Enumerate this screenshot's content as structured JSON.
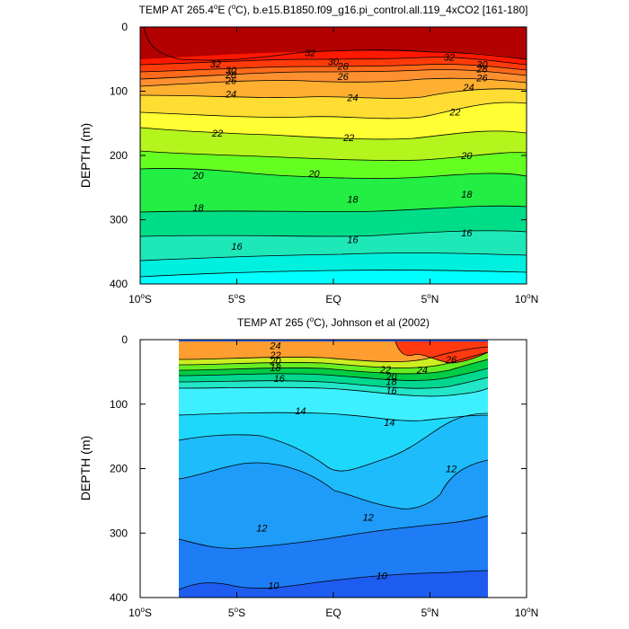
{
  "chart_data": [
    {
      "type": "contour",
      "title_main": "TEMP AT 265.4",
      "title_sup": "o",
      "title_units_open": "E (",
      "title_units_sup": "o",
      "title_rest": "C), b.e15.B1850.f09_g16.pi_control.all.119_4xCO2 [161-180]",
      "ylabel": "DEPTH (m)",
      "ylim": [
        0,
        400
      ],
      "xlim": [
        -10,
        10
      ],
      "y_ticks": [
        "0",
        "100",
        "200",
        "300",
        "400"
      ],
      "y_tick_values": [
        0,
        100,
        200,
        300,
        400
      ],
      "x_ticks": [
        {
          "value": -10,
          "num": "10",
          "sup": "o",
          "suffix": "S"
        },
        {
          "value": -5,
          "num": "5",
          "sup": "o",
          "suffix": "S"
        },
        {
          "value": 0,
          "num": "EQ",
          "sup": "",
          "suffix": ""
        },
        {
          "value": 5,
          "num": "5",
          "sup": "o",
          "suffix": "N"
        },
        {
          "value": 10,
          "num": "10",
          "sup": "o",
          "suffix": "N"
        }
      ],
      "data_x_range": [
        -10,
        10
      ],
      "contour_labels": [
        {
          "text": "32",
          "x": -6.1,
          "y": 57
        },
        {
          "text": "30",
          "x": -5.3,
          "y": 67
        },
        {
          "text": "28",
          "x": -5.3,
          "y": 74
        },
        {
          "text": "26",
          "x": -5.3,
          "y": 83
        },
        {
          "text": "24",
          "x": -5.3,
          "y": 104
        },
        {
          "text": "22",
          "x": -6.0,
          "y": 165
        },
        {
          "text": "20",
          "x": -7.0,
          "y": 231
        },
        {
          "text": "18",
          "x": -7.0,
          "y": 281
        },
        {
          "text": "16",
          "x": -5.0,
          "y": 341
        },
        {
          "text": "32",
          "x": -1.2,
          "y": 40
        },
        {
          "text": "30",
          "x": 0.0,
          "y": 54
        },
        {
          "text": "28",
          "x": 0.5,
          "y": 61
        },
        {
          "text": "26",
          "x": 0.5,
          "y": 77
        },
        {
          "text": "24",
          "x": 1.0,
          "y": 110
        },
        {
          "text": "22",
          "x": 0.8,
          "y": 172
        },
        {
          "text": "20",
          "x": -1.0,
          "y": 228
        },
        {
          "text": "18",
          "x": 1.0,
          "y": 268
        },
        {
          "text": "16",
          "x": 1.0,
          "y": 331
        },
        {
          "text": "32",
          "x": 6.0,
          "y": 47
        },
        {
          "text": "30",
          "x": 7.7,
          "y": 58
        },
        {
          "text": "28",
          "x": 7.7,
          "y": 65
        },
        {
          "text": "26",
          "x": 7.7,
          "y": 79
        },
        {
          "text": "24",
          "x": 7.0,
          "y": 94
        },
        {
          "text": "22",
          "x": 6.3,
          "y": 132
        },
        {
          "text": "20",
          "x": 6.9,
          "y": 200
        },
        {
          "text": "18",
          "x": 6.9,
          "y": 260
        },
        {
          "text": "16",
          "x": 6.9,
          "y": 320
        }
      ]
    },
    {
      "type": "contour",
      "title_main": "TEMP AT 265 (",
      "title_sup": "o",
      "title_rest": "C), Johnson et al (2002)",
      "ylabel": "DEPTH (m)",
      "ylim": [
        0,
        400
      ],
      "xlim": [
        -10,
        10
      ],
      "y_ticks": [
        "0",
        "100",
        "200",
        "300",
        "400"
      ],
      "y_tick_values": [
        0,
        100,
        200,
        300,
        400
      ],
      "x_ticks": [
        {
          "value": -10,
          "num": "10",
          "sup": "o",
          "suffix": "S"
        },
        {
          "value": -5,
          "num": "5",
          "sup": "o",
          "suffix": "S"
        },
        {
          "value": 0,
          "num": "EQ",
          "sup": "",
          "suffix": ""
        },
        {
          "value": 5,
          "num": "5",
          "sup": "o",
          "suffix": "N"
        },
        {
          "value": 10,
          "num": "10",
          "sup": "o",
          "suffix": "N"
        }
      ],
      "data_x_range": [
        -8,
        8
      ],
      "contour_labels": [
        {
          "text": "24",
          "x": -3.0,
          "y": 9
        },
        {
          "text": "22",
          "x": -3.0,
          "y": 24
        },
        {
          "text": "20",
          "x": -3.0,
          "y": 33
        },
        {
          "text": "18",
          "x": -3.0,
          "y": 43
        },
        {
          "text": "16",
          "x": -2.8,
          "y": 60
        },
        {
          "text": "14",
          "x": -1.7,
          "y": 110
        },
        {
          "text": "12",
          "x": -3.7,
          "y": 292
        },
        {
          "text": "10",
          "x": -3.1,
          "y": 381
        },
        {
          "text": "22",
          "x": 2.7,
          "y": 46
        },
        {
          "text": "20",
          "x": 3.0,
          "y": 57
        },
        {
          "text": "18",
          "x": 3.0,
          "y": 65
        },
        {
          "text": "16",
          "x": 3.0,
          "y": 79
        },
        {
          "text": "14",
          "x": 2.9,
          "y": 128
        },
        {
          "text": "24",
          "x": 4.6,
          "y": 47
        },
        {
          "text": "26",
          "x": 6.1,
          "y": 31
        },
        {
          "text": "12",
          "x": 6.1,
          "y": 200
        },
        {
          "text": "12",
          "x": 1.8,
          "y": 275
        },
        {
          "text": "10",
          "x": 2.5,
          "y": 366
        }
      ]
    }
  ]
}
